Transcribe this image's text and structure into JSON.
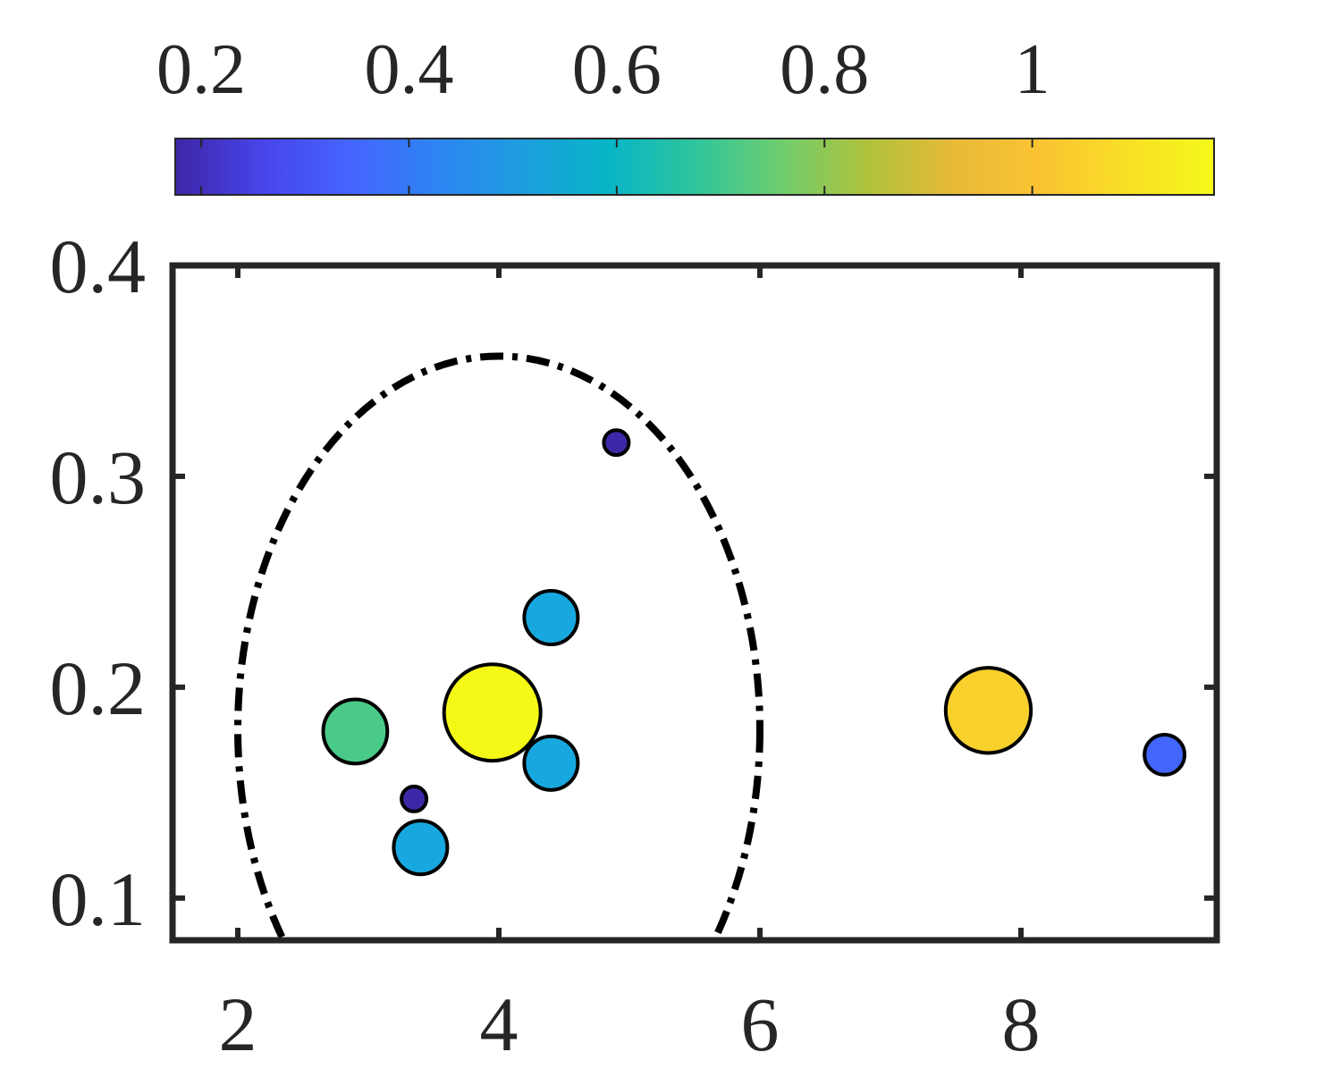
{
  "chart_data": {
    "type": "scatter",
    "title": "",
    "xlabel": "",
    "ylabel": "",
    "xlim": [
      1.5,
      9.5
    ],
    "ylim": [
      0.08,
      0.4
    ],
    "x_ticks": [
      2,
      4,
      6,
      8
    ],
    "y_ticks": [
      0.1,
      0.2,
      0.3,
      0.4
    ],
    "grid": false,
    "colorbar": {
      "placement": "top",
      "range": [
        0.175,
        1.175
      ],
      "ticks": [
        0.2,
        0.4,
        0.6,
        0.8,
        1
      ],
      "colormap": [
        "#3e26a8",
        "#4744e9",
        "#4664fe",
        "#2d84f3",
        "#1e9ddf",
        "#07b5c7",
        "#2ec59d",
        "#6fcd6e",
        "#b0c23b",
        "#e8ba38",
        "#fbc332",
        "#f8df25",
        "#f5f91a"
      ]
    },
    "points": [
      {
        "x": 4.9,
        "y": 0.316,
        "value": 0.2,
        "color": "#3d28a8"
      },
      {
        "x": 4.4,
        "y": 0.233,
        "value": 0.58,
        "color": "#17a8df"
      },
      {
        "x": 2.9,
        "y": 0.179,
        "value": 0.72,
        "color": "#4aca88"
      },
      {
        "x": 3.95,
        "y": 0.188,
        "value": 1.15,
        "color": "#f5f916"
      },
      {
        "x": 4.4,
        "y": 0.164,
        "value": 0.58,
        "color": "#17a8df"
      },
      {
        "x": 3.35,
        "y": 0.147,
        "value": 0.2,
        "color": "#3d28a8"
      },
      {
        "x": 3.4,
        "y": 0.124,
        "value": 0.58,
        "color": "#17a8df"
      },
      {
        "x": 7.75,
        "y": 0.189,
        "value": 1.0,
        "color": "#f8d12c"
      },
      {
        "x": 9.1,
        "y": 0.168,
        "value": 0.4,
        "color": "#4266fb"
      }
    ],
    "annotations": [
      {
        "type": "ellipse",
        "style": "dash-dot",
        "color": "#000000",
        "cx": 4.0,
        "cy": 0.18,
        "rx": 2.0,
        "ry": 0.177
      }
    ]
  }
}
